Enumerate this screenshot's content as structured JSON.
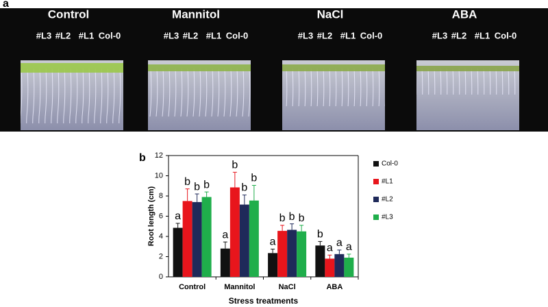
{
  "panel_a": {
    "label": "a",
    "treatments": [
      "Control",
      "Mannitol",
      "NaCl",
      "ABA"
    ],
    "lines": [
      "#L3",
      "#L2",
      "#L1",
      "Col-0"
    ]
  },
  "chart_data": {
    "type": "bar",
    "panel_label": "b",
    "ylabel": "Root length (cm)",
    "xlabel": "Stress treatments",
    "categories": [
      "Control",
      "Mannitol",
      "NaCl",
      "ABA"
    ],
    "ylim": [
      0,
      12
    ],
    "yticks": [
      0,
      2,
      4,
      6,
      8,
      10,
      12
    ],
    "legend_position": "right",
    "series": [
      {
        "name": "Col-0",
        "color": "#111111",
        "values": [
          4.85,
          2.8,
          2.35,
          3.1
        ],
        "errors": [
          0.45,
          0.65,
          0.4,
          0.4
        ],
        "letters": [
          "a",
          "a",
          "a",
          "b"
        ]
      },
      {
        "name": "#L1",
        "color": "#e8151c",
        "values": [
          7.5,
          8.85,
          4.55,
          1.8
        ],
        "errors": [
          1.2,
          1.5,
          0.55,
          0.35
        ],
        "letters": [
          "b",
          "b",
          "b",
          "a"
        ]
      },
      {
        "name": "#L2",
        "color": "#1f2a5a",
        "values": [
          7.4,
          7.15,
          4.65,
          2.25
        ],
        "errors": [
          0.8,
          0.95,
          0.6,
          0.4
        ],
        "letters": [
          "b",
          "b",
          "b",
          "a"
        ]
      },
      {
        "name": "#L3",
        "color": "#1fae4b",
        "values": [
          7.9,
          7.55,
          4.5,
          1.9
        ],
        "errors": [
          0.5,
          1.5,
          0.6,
          0.35
        ],
        "letters": [
          "b",
          "b",
          "b",
          "a"
        ]
      }
    ]
  }
}
